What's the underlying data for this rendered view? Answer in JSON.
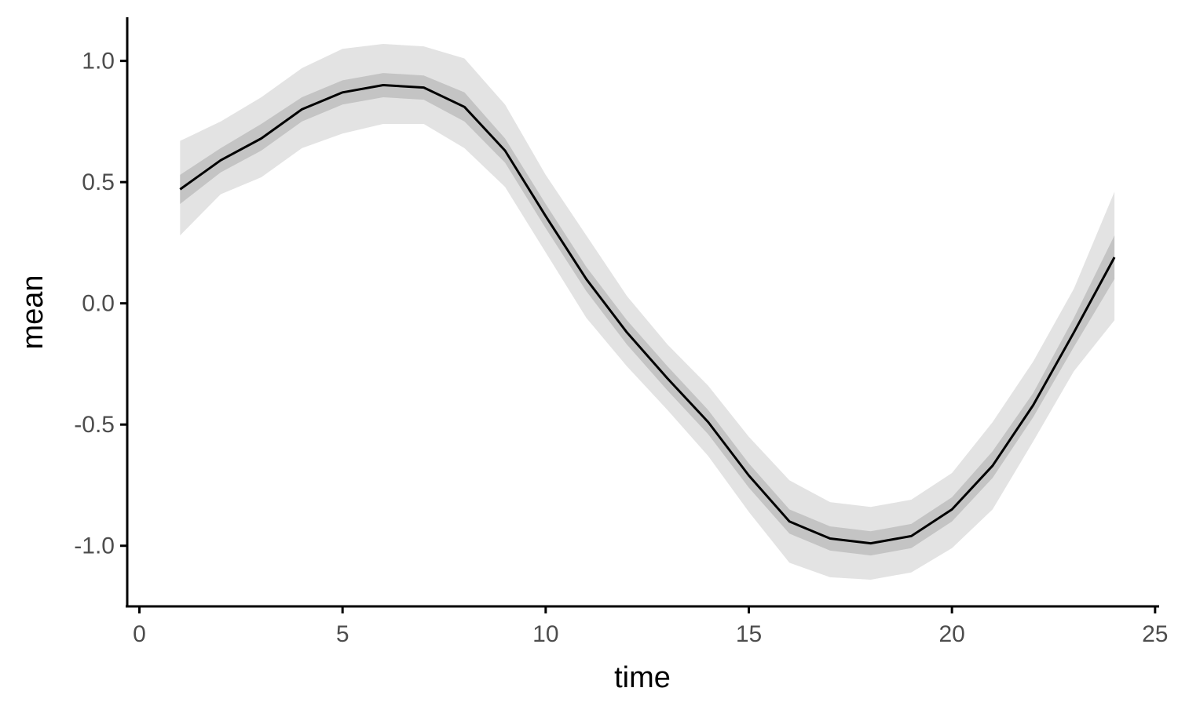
{
  "chart_data": {
    "type": "line",
    "title": "",
    "xlabel": "time",
    "ylabel": "mean",
    "xlim": [
      -0.3,
      25.1
    ],
    "ylim": [
      -1.25,
      1.18
    ],
    "x_ticks": [
      0,
      5,
      10,
      15,
      20,
      25
    ],
    "y_ticks": [
      -1.0,
      -0.5,
      0.0,
      0.5,
      1.0
    ],
    "x_tick_labels": [
      "0",
      "5",
      "10",
      "15",
      "20",
      "25"
    ],
    "y_tick_labels": [
      "-1.0",
      "-0.5",
      "0.0",
      "0.5",
      "1.0"
    ],
    "grid": false,
    "legend": "none",
    "x": [
      1,
      2,
      3,
      4,
      5,
      6,
      7,
      8,
      9,
      10,
      11,
      12,
      13,
      14,
      15,
      16,
      17,
      18,
      19,
      20,
      21,
      22,
      23,
      24
    ],
    "series": [
      {
        "values": [
          0.47,
          0.59,
          0.68,
          0.8,
          0.87,
          0.9,
          0.89,
          0.81,
          0.63,
          0.36,
          0.1,
          -0.12,
          -0.31,
          -0.49,
          -0.71,
          -0.9,
          -0.97,
          -0.99,
          -0.96,
          -0.85,
          -0.67,
          -0.42,
          -0.12,
          0.19
        ],
        "color": "#000000"
      }
    ],
    "bands": [
      {
        "lower": [
          0.28,
          0.45,
          0.52,
          0.64,
          0.7,
          0.74,
          0.74,
          0.64,
          0.48,
          0.21,
          -0.06,
          -0.26,
          -0.44,
          -0.63,
          -0.86,
          -1.07,
          -1.13,
          -1.14,
          -1.11,
          -1.01,
          -0.85,
          -0.57,
          -0.28,
          -0.07
        ],
        "upper": [
          0.67,
          0.75,
          0.85,
          0.97,
          1.05,
          1.07,
          1.06,
          1.01,
          0.82,
          0.53,
          0.28,
          0.03,
          -0.17,
          -0.34,
          -0.55,
          -0.73,
          -0.82,
          -0.84,
          -0.81,
          -0.7,
          -0.49,
          -0.24,
          0.06,
          0.46
        ],
        "color": "#e3e3e3"
      },
      {
        "lower": [
          0.41,
          0.54,
          0.63,
          0.75,
          0.82,
          0.85,
          0.84,
          0.75,
          0.58,
          0.31,
          0.05,
          -0.17,
          -0.36,
          -0.54,
          -0.76,
          -0.95,
          -1.02,
          -1.04,
          -1.01,
          -0.9,
          -0.72,
          -0.47,
          -0.18,
          0.1
        ],
        "upper": [
          0.53,
          0.64,
          0.74,
          0.85,
          0.92,
          0.95,
          0.94,
          0.87,
          0.68,
          0.41,
          0.15,
          -0.07,
          -0.26,
          -0.44,
          -0.66,
          -0.85,
          -0.92,
          -0.94,
          -0.91,
          -0.8,
          -0.61,
          -0.37,
          -0.06,
          0.28
        ],
        "color": "#c4c4c4"
      }
    ]
  }
}
